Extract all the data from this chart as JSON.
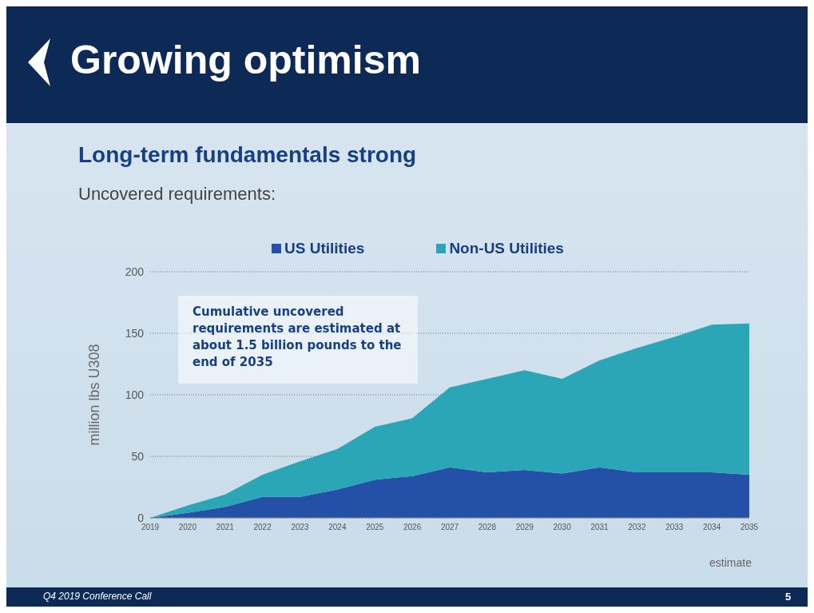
{
  "chart_data": {
    "type": "area",
    "title": "Growing optimism",
    "subtitle": "Long-term fundamentals strong",
    "ylabel": "million lbs U308",
    "x": [
      2019,
      2020,
      2021,
      2022,
      2023,
      2024,
      2025,
      2026,
      2027,
      2028,
      2029,
      2030,
      2031,
      2032,
      2033,
      2034,
      2035
    ],
    "series": [
      {
        "name": "US Utilities",
        "color": "#2450a8",
        "values": [
          0,
          4,
          9,
          17,
          17,
          23,
          31,
          34,
          41,
          37,
          39,
          36,
          41,
          37,
          37,
          37,
          35
        ]
      },
      {
        "name": "Non-US Utilities",
        "color": "#2aa6b6",
        "values": [
          0,
          6,
          10,
          18,
          29,
          33,
          43,
          47,
          65,
          76,
          81,
          77,
          87,
          101,
          110,
          120,
          123
        ]
      }
    ],
    "stacked": true,
    "xlim": [
      2019,
      2035
    ],
    "xticks": [
      2019,
      2020,
      2021,
      2022,
      2023,
      2024,
      2025,
      2026,
      2027,
      2028,
      2029,
      2030,
      2031,
      2032,
      2033,
      2034,
      2035
    ],
    "ylim": [
      0,
      200
    ],
    "yticks": [
      0,
      50,
      100,
      150,
      200
    ],
    "grid": "y",
    "legend": "top",
    "annotations": [
      "Uncovered requirements:",
      "Cumulative uncovered requirements are estimated at about 1.5 billion pounds to the end of 2035",
      "estimate",
      "Q4 2019 Conference Call",
      "5"
    ]
  }
}
